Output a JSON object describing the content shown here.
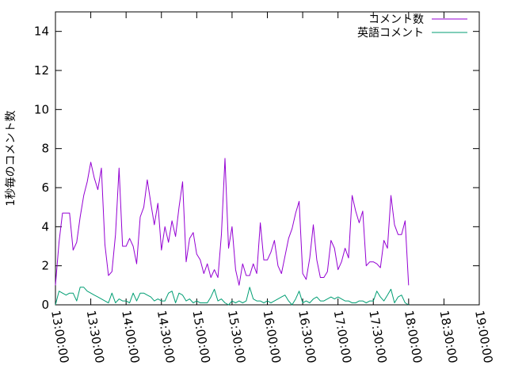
{
  "chart_data": {
    "type": "line",
    "title": "",
    "xlabel": "",
    "ylabel": "1秒毎のコメント数",
    "ylim": [
      0,
      15
    ],
    "y_ticks": [
      0,
      2,
      4,
      6,
      8,
      10,
      12,
      14
    ],
    "x_ticks": [
      "13:00:00",
      "13:30:00",
      "14:00:00",
      "14:30:00",
      "15:00:00",
      "15:30:00",
      "16:00:00",
      "16:30:00",
      "17:00:00",
      "17:30:00",
      "18:00:00",
      "18:30:00",
      "19:00:00"
    ],
    "xlim": [
      "13:00:00",
      "19:00:00"
    ],
    "x_tick_rotation": "vertical",
    "grid": false,
    "legend_position": "top-right",
    "series": [
      {
        "name": "コメント数",
        "color": "#9400d3",
        "points": [
          [
            "13:00:00",
            1.0
          ],
          [
            "13:03:00",
            3.2
          ],
          [
            "13:06:00",
            4.7
          ],
          [
            "13:09:00",
            4.7
          ],
          [
            "13:12:00",
            4.7
          ],
          [
            "13:15:00",
            2.8
          ],
          [
            "13:18:00",
            3.2
          ],
          [
            "13:21:00",
            4.5
          ],
          [
            "13:24:00",
            5.6
          ],
          [
            "13:27:00",
            6.3
          ],
          [
            "13:30:00",
            7.3
          ],
          [
            "13:33:00",
            6.5
          ],
          [
            "13:36:00",
            5.9
          ],
          [
            "13:39:00",
            7.0
          ],
          [
            "13:42:00",
            3.1
          ],
          [
            "13:45:00",
            1.5
          ],
          [
            "13:48:00",
            1.7
          ],
          [
            "13:51:00",
            3.6
          ],
          [
            "13:54:00",
            7.0
          ],
          [
            "13:57:00",
            3.0
          ],
          [
            "14:00:00",
            3.0
          ],
          [
            "14:03:00",
            3.4
          ],
          [
            "14:06:00",
            3.0
          ],
          [
            "14:09:00",
            2.1
          ],
          [
            "14:12:00",
            4.5
          ],
          [
            "14:15:00",
            5.0
          ],
          [
            "14:18:00",
            6.4
          ],
          [
            "14:21:00",
            5.2
          ],
          [
            "14:24:00",
            4.1
          ],
          [
            "14:27:00",
            5.2
          ],
          [
            "14:30:00",
            2.8
          ],
          [
            "14:33:00",
            4.0
          ],
          [
            "14:36:00",
            3.2
          ],
          [
            "14:39:00",
            4.3
          ],
          [
            "14:42:00",
            3.5
          ],
          [
            "14:45:00",
            5.0
          ],
          [
            "14:48:00",
            6.3
          ],
          [
            "14:51:00",
            2.2
          ],
          [
            "14:54:00",
            3.4
          ],
          [
            "14:57:00",
            3.7
          ],
          [
            "15:00:00",
            2.6
          ],
          [
            "15:03:00",
            2.3
          ],
          [
            "15:06:00",
            1.6
          ],
          [
            "15:09:00",
            2.1
          ],
          [
            "15:12:00",
            1.4
          ],
          [
            "15:15:00",
            1.8
          ],
          [
            "15:18:00",
            1.4
          ],
          [
            "15:21:00",
            3.6
          ],
          [
            "15:24:00",
            7.5
          ],
          [
            "15:27:00",
            2.9
          ],
          [
            "15:30:00",
            4.0
          ],
          [
            "15:33:00",
            1.8
          ],
          [
            "15:36:00",
            1.0
          ],
          [
            "15:39:00",
            2.1
          ],
          [
            "15:42:00",
            1.5
          ],
          [
            "15:45:00",
            1.5
          ],
          [
            "15:48:00",
            2.1
          ],
          [
            "15:51:00",
            1.6
          ],
          [
            "15:54:00",
            4.2
          ],
          [
            "15:57:00",
            2.3
          ],
          [
            "16:00:00",
            2.3
          ],
          [
            "16:03:00",
            2.7
          ],
          [
            "16:06:00",
            3.3
          ],
          [
            "16:09:00",
            2.0
          ],
          [
            "16:12:00",
            1.6
          ],
          [
            "16:15:00",
            2.5
          ],
          [
            "16:18:00",
            3.4
          ],
          [
            "16:21:00",
            3.9
          ],
          [
            "16:24:00",
            4.7
          ],
          [
            "16:27:00",
            5.3
          ],
          [
            "16:30:00",
            1.6
          ],
          [
            "16:33:00",
            1.3
          ],
          [
            "16:36:00",
            2.4
          ],
          [
            "16:39:00",
            4.1
          ],
          [
            "16:42:00",
            2.3
          ],
          [
            "16:45:00",
            1.4
          ],
          [
            "16:48:00",
            1.4
          ],
          [
            "16:51:00",
            1.7
          ],
          [
            "16:54:00",
            3.3
          ],
          [
            "16:57:00",
            2.9
          ],
          [
            "17:00:00",
            1.8
          ],
          [
            "17:03:00",
            2.2
          ],
          [
            "17:06:00",
            2.9
          ],
          [
            "17:09:00",
            2.4
          ],
          [
            "17:12:00",
            5.6
          ],
          [
            "17:15:00",
            4.8
          ],
          [
            "17:18:00",
            4.2
          ],
          [
            "17:21:00",
            4.8
          ],
          [
            "17:24:00",
            2.0
          ],
          [
            "17:27:00",
            2.2
          ],
          [
            "17:30:00",
            2.2
          ],
          [
            "17:33:00",
            2.1
          ],
          [
            "17:36:00",
            1.9
          ],
          [
            "17:39:00",
            3.3
          ],
          [
            "17:42:00",
            2.9
          ],
          [
            "17:45:00",
            5.6
          ],
          [
            "17:48:00",
            4.1
          ],
          [
            "17:51:00",
            3.6
          ],
          [
            "17:54:00",
            3.6
          ],
          [
            "17:57:00",
            4.3
          ],
          [
            "18:00:00",
            1.0
          ]
        ]
      },
      {
        "name": "英語コメント",
        "color": "#009e73",
        "points": [
          [
            "13:00:00",
            0.0
          ],
          [
            "13:03:00",
            0.7
          ],
          [
            "13:06:00",
            0.6
          ],
          [
            "13:09:00",
            0.5
          ],
          [
            "13:12:00",
            0.6
          ],
          [
            "13:15:00",
            0.6
          ],
          [
            "13:18:00",
            0.2
          ],
          [
            "13:21:00",
            0.9
          ],
          [
            "13:24:00",
            0.9
          ],
          [
            "13:27:00",
            0.7
          ],
          [
            "13:30:00",
            0.6
          ],
          [
            "13:33:00",
            0.5
          ],
          [
            "13:36:00",
            0.4
          ],
          [
            "13:39:00",
            0.3
          ],
          [
            "13:42:00",
            0.2
          ],
          [
            "13:45:00",
            0.1
          ],
          [
            "13:48:00",
            0.6
          ],
          [
            "13:51:00",
            0.1
          ],
          [
            "13:54:00",
            0.3
          ],
          [
            "13:57:00",
            0.2
          ],
          [
            "14:00:00",
            0.2
          ],
          [
            "14:03:00",
            0.1
          ],
          [
            "14:06:00",
            0.6
          ],
          [
            "14:09:00",
            0.2
          ],
          [
            "14:12:00",
            0.6
          ],
          [
            "14:15:00",
            0.6
          ],
          [
            "14:18:00",
            0.5
          ],
          [
            "14:21:00",
            0.4
          ],
          [
            "14:24:00",
            0.2
          ],
          [
            "14:27:00",
            0.3
          ],
          [
            "14:30:00",
            0.2
          ],
          [
            "14:33:00",
            0.2
          ],
          [
            "14:36:00",
            0.6
          ],
          [
            "14:39:00",
            0.7
          ],
          [
            "14:42:00",
            0.1
          ],
          [
            "14:45:00",
            0.6
          ],
          [
            "14:48:00",
            0.5
          ],
          [
            "14:51:00",
            0.2
          ],
          [
            "14:54:00",
            0.3
          ],
          [
            "14:57:00",
            0.1
          ],
          [
            "15:00:00",
            0.2
          ],
          [
            "15:03:00",
            0.1
          ],
          [
            "15:06:00",
            0.1
          ],
          [
            "15:09:00",
            0.1
          ],
          [
            "15:12:00",
            0.4
          ],
          [
            "15:15:00",
            0.8
          ],
          [
            "15:18:00",
            0.2
          ],
          [
            "15:21:00",
            0.3
          ],
          [
            "15:24:00",
            0.1
          ],
          [
            "15:27:00",
            0.0
          ],
          [
            "15:30:00",
            0.2
          ],
          [
            "15:33:00",
            0.1
          ],
          [
            "15:36:00",
            0.2
          ],
          [
            "15:39:00",
            0.1
          ],
          [
            "15:42:00",
            0.2
          ],
          [
            "15:45:00",
            0.9
          ],
          [
            "15:48:00",
            0.3
          ],
          [
            "15:51:00",
            0.2
          ],
          [
            "15:54:00",
            0.2
          ],
          [
            "15:57:00",
            0.1
          ],
          [
            "16:00:00",
            0.2
          ],
          [
            "16:03:00",
            0.1
          ],
          [
            "16:06:00",
            0.2
          ],
          [
            "16:09:00",
            0.3
          ],
          [
            "16:12:00",
            0.4
          ],
          [
            "16:15:00",
            0.5
          ],
          [
            "16:18:00",
            0.2
          ],
          [
            "16:21:00",
            0.0
          ],
          [
            "16:24:00",
            0.3
          ],
          [
            "16:27:00",
            0.7
          ],
          [
            "16:30:00",
            0.1
          ],
          [
            "16:33:00",
            0.2
          ],
          [
            "16:36:00",
            0.1
          ],
          [
            "16:39:00",
            0.3
          ],
          [
            "16:42:00",
            0.4
          ],
          [
            "16:45:00",
            0.2
          ],
          [
            "16:48:00",
            0.2
          ],
          [
            "16:51:00",
            0.3
          ],
          [
            "16:54:00",
            0.4
          ],
          [
            "16:57:00",
            0.3
          ],
          [
            "17:00:00",
            0.4
          ],
          [
            "17:03:00",
            0.3
          ],
          [
            "17:06:00",
            0.2
          ],
          [
            "17:09:00",
            0.2
          ],
          [
            "17:12:00",
            0.1
          ],
          [
            "17:15:00",
            0.1
          ],
          [
            "17:18:00",
            0.2
          ],
          [
            "17:21:00",
            0.2
          ],
          [
            "17:24:00",
            0.1
          ],
          [
            "17:27:00",
            0.2
          ],
          [
            "17:30:00",
            0.2
          ],
          [
            "17:33:00",
            0.7
          ],
          [
            "17:36:00",
            0.4
          ],
          [
            "17:39:00",
            0.2
          ],
          [
            "17:42:00",
            0.5
          ],
          [
            "17:45:00",
            0.8
          ],
          [
            "17:48:00",
            0.1
          ],
          [
            "17:51:00",
            0.4
          ],
          [
            "17:54:00",
            0.5
          ],
          [
            "17:57:00",
            0.1
          ],
          [
            "18:00:00",
            0.0
          ]
        ]
      }
    ]
  }
}
